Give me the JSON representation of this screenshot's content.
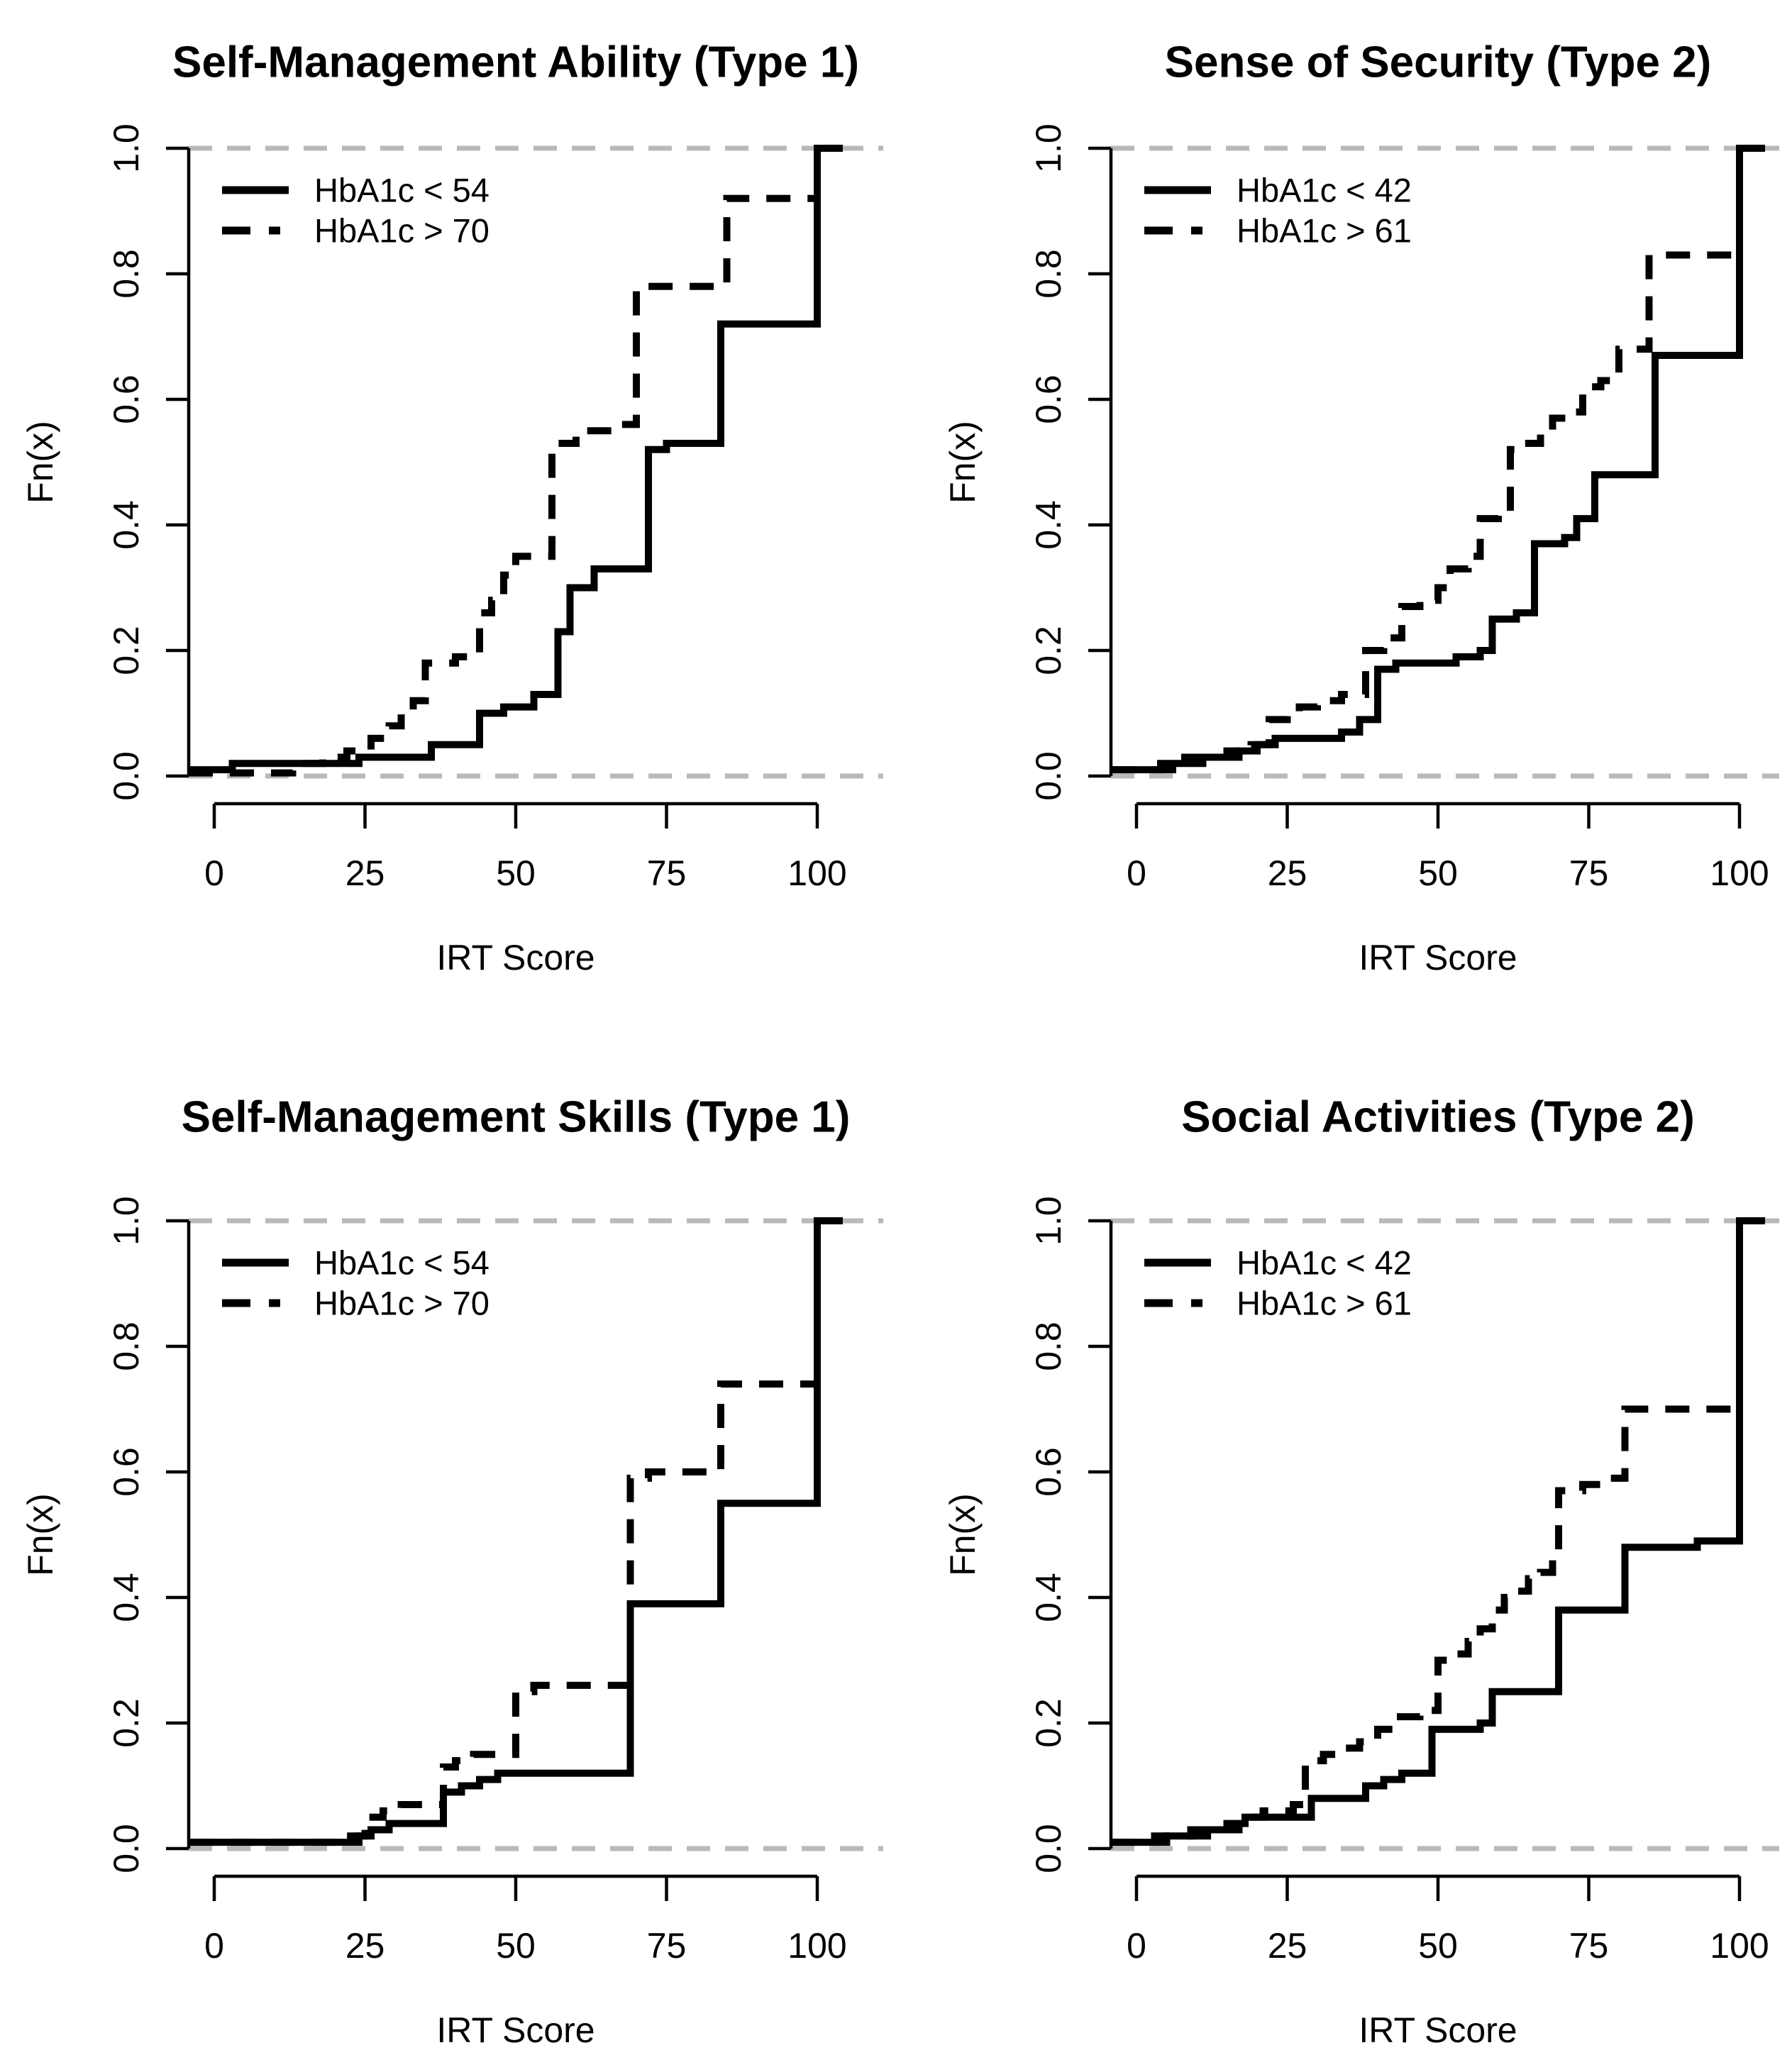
{
  "figure": {
    "rows": 2,
    "cols": 2,
    "panel_order": [
      "top-left",
      "top-right",
      "bottom-left",
      "bottom-right"
    ]
  },
  "colors": {
    "curve": "#000000",
    "axis": "#000000",
    "text": "#000000",
    "reference_line": "#b9b9b9",
    "background": "#ffffff"
  },
  "chart_data": [
    {
      "type": "line",
      "subtype": "ecdf-step",
      "title": "Self-Management Ability (Type 1)",
      "xlabel": "IRT Score",
      "ylabel": "Fn(x)",
      "xlim": [
        0,
        100
      ],
      "ylim": [
        0,
        1
      ],
      "xticks": [
        0,
        25,
        50,
        75,
        100
      ],
      "yticks": [
        0,
        0.2,
        0.4,
        0.6,
        0.8,
        1
      ],
      "ytick_labels": [
        "0.0",
        "0.2",
        "0.4",
        "0.6",
        "0.8",
        "1.0"
      ],
      "reference_lines_y": [
        0,
        1
      ],
      "grid": false,
      "legend_position": "top-left",
      "series": [
        {
          "name": "HbA1c < 54",
          "line_style": "solid",
          "steps": [
            [
              0,
              0.01
            ],
            [
              3,
              0.02
            ],
            [
              8,
              0.02
            ],
            [
              13,
              0.02
            ],
            [
              17,
              0.02
            ],
            [
              24,
              0.03
            ],
            [
              30,
              0.03
            ],
            [
              36,
              0.05
            ],
            [
              40,
              0.05
            ],
            [
              44,
              0.1
            ],
            [
              48,
              0.11
            ],
            [
              53,
              0.13
            ],
            [
              57,
              0.23
            ],
            [
              59,
              0.3
            ],
            [
              63,
              0.33
            ],
            [
              72,
              0.52
            ],
            [
              75,
              0.53
            ],
            [
              84,
              0.72
            ],
            [
              100,
              1.0
            ]
          ]
        },
        {
          "name": "HbA1c > 70",
          "line_style": "dashed",
          "steps": [
            [
              0,
              0.005
            ],
            [
              13,
              0.02
            ],
            [
              18,
              0.03
            ],
            [
              22,
              0.04
            ],
            [
              26,
              0.06
            ],
            [
              29,
              0.08
            ],
            [
              31,
              0.1
            ],
            [
              33,
              0.12
            ],
            [
              35,
              0.18
            ],
            [
              40,
              0.19
            ],
            [
              44,
              0.26
            ],
            [
              46,
              0.28
            ],
            [
              48,
              0.32
            ],
            [
              50,
              0.35
            ],
            [
              56,
              0.53
            ],
            [
              60,
              0.55
            ],
            [
              66,
              0.56
            ],
            [
              70,
              0.78
            ],
            [
              85,
              0.92
            ],
            [
              100,
              1.0
            ]
          ]
        }
      ]
    },
    {
      "type": "line",
      "subtype": "ecdf-step",
      "title": "Sense of Security (Type 2)",
      "xlabel": "IRT Score",
      "ylabel": "Fn(x)",
      "xlim": [
        0,
        100
      ],
      "ylim": [
        0,
        1
      ],
      "xticks": [
        0,
        25,
        50,
        75,
        100
      ],
      "yticks": [
        0,
        0.2,
        0.4,
        0.6,
        0.8,
        1
      ],
      "ytick_labels": [
        "0.0",
        "0.2",
        "0.4",
        "0.6",
        "0.8",
        "1.0"
      ],
      "reference_lines_y": [
        0,
        1
      ],
      "grid": false,
      "legend_position": "top-left",
      "series": [
        {
          "name": "HbA1c < 42",
          "line_style": "solid",
          "steps": [
            [
              0,
              0.01
            ],
            [
              4,
              0.02
            ],
            [
              8,
              0.03
            ],
            [
              13,
              0.03
            ],
            [
              17,
              0.04
            ],
            [
              20,
              0.05
            ],
            [
              23,
              0.06
            ],
            [
              31,
              0.06
            ],
            [
              34,
              0.07
            ],
            [
              37,
              0.09
            ],
            [
              40,
              0.17
            ],
            [
              43,
              0.18
            ],
            [
              53,
              0.19
            ],
            [
              57,
              0.2
            ],
            [
              59,
              0.25
            ],
            [
              63,
              0.26
            ],
            [
              66,
              0.37
            ],
            [
              71,
              0.38
            ],
            [
              73,
              0.41
            ],
            [
              76,
              0.48
            ],
            [
              86,
              0.67
            ],
            [
              100,
              1.0
            ]
          ]
        },
        {
          "name": "HbA1c > 61",
          "line_style": "dashed",
          "steps": [
            [
              0,
              0.01
            ],
            [
              7,
              0.02
            ],
            [
              11,
              0.03
            ],
            [
              15,
              0.04
            ],
            [
              19,
              0.05
            ],
            [
              22,
              0.09
            ],
            [
              25,
              0.1
            ],
            [
              27,
              0.11
            ],
            [
              30,
              0.12
            ],
            [
              34,
              0.13
            ],
            [
              38,
              0.2
            ],
            [
              41,
              0.22
            ],
            [
              44,
              0.27
            ],
            [
              47,
              0.28
            ],
            [
              50,
              0.3
            ],
            [
              52,
              0.33
            ],
            [
              55,
              0.35
            ],
            [
              57,
              0.41
            ],
            [
              60,
              0.42
            ],
            [
              62,
              0.52
            ],
            [
              64,
              0.53
            ],
            [
              67,
              0.55
            ],
            [
              69,
              0.57
            ],
            [
              72,
              0.58
            ],
            [
              74,
              0.62
            ],
            [
              77,
              0.63
            ],
            [
              80,
              0.68
            ],
            [
              85,
              0.83
            ],
            [
              100,
              1.0
            ]
          ]
        }
      ]
    },
    {
      "type": "line",
      "subtype": "ecdf-step",
      "title": "Self-Management Skills (Type 1)",
      "xlabel": "IRT Score",
      "ylabel": "Fn(x)",
      "xlim": [
        0,
        100
      ],
      "ylim": [
        0,
        1
      ],
      "xticks": [
        0,
        25,
        50,
        75,
        100
      ],
      "yticks": [
        0,
        0.2,
        0.4,
        0.6,
        0.8,
        1
      ],
      "ytick_labels": [
        "0.0",
        "0.2",
        "0.4",
        "0.6",
        "0.8",
        "1.0"
      ],
      "reference_lines_y": [
        0,
        1
      ],
      "grid": false,
      "legend_position": "top-left",
      "series": [
        {
          "name": "HbA1c < 54",
          "line_style": "solid",
          "steps": [
            [
              0,
              0.01
            ],
            [
              20,
              0.01
            ],
            [
              24,
              0.02
            ],
            [
              26,
              0.03
            ],
            [
              29,
              0.04
            ],
            [
              36,
              0.04
            ],
            [
              38,
              0.09
            ],
            [
              41,
              0.1
            ],
            [
              44,
              0.11
            ],
            [
              47,
              0.12
            ],
            [
              66,
              0.12
            ],
            [
              69,
              0.39
            ],
            [
              72,
              0.39
            ],
            [
              84,
              0.55
            ],
            [
              100,
              1.0
            ]
          ]
        },
        {
          "name": "HbA1c > 70",
          "line_style": "dashed",
          "steps": [
            [
              0,
              0.01
            ],
            [
              22,
              0.02
            ],
            [
              25,
              0.05
            ],
            [
              28,
              0.06
            ],
            [
              31,
              0.07
            ],
            [
              38,
              0.13
            ],
            [
              40,
              0.14
            ],
            [
              43,
              0.15
            ],
            [
              50,
              0.25
            ],
            [
              53,
              0.26
            ],
            [
              66,
              0.26
            ],
            [
              69,
              0.59
            ],
            [
              72,
              0.6
            ],
            [
              84,
              0.74
            ],
            [
              100,
              1.0
            ]
          ]
        }
      ]
    },
    {
      "type": "line",
      "subtype": "ecdf-step",
      "title": "Social Activities (Type 2)",
      "xlabel": "IRT Score",
      "ylabel": "Fn(x)",
      "xlim": [
        0,
        100
      ],
      "ylim": [
        0,
        1
      ],
      "xticks": [
        0,
        25,
        50,
        75,
        100
      ],
      "yticks": [
        0,
        0.2,
        0.4,
        0.6,
        0.8,
        1
      ],
      "ytick_labels": [
        "0.0",
        "0.2",
        "0.4",
        "0.6",
        "0.8",
        "1.0"
      ],
      "reference_lines_y": [
        0,
        1
      ],
      "grid": false,
      "legend_position": "top-left",
      "series": [
        {
          "name": "HbA1c < 42",
          "line_style": "solid",
          "steps": [
            [
              0,
              0.01
            ],
            [
              3,
              0.02
            ],
            [
              6,
              0.02
            ],
            [
              9,
              0.03
            ],
            [
              12,
              0.03
            ],
            [
              15,
              0.04
            ],
            [
              18,
              0.05
            ],
            [
              27,
              0.05
            ],
            [
              29,
              0.08
            ],
            [
              38,
              0.1
            ],
            [
              41,
              0.11
            ],
            [
              44,
              0.12
            ],
            [
              49,
              0.19
            ],
            [
              57,
              0.2
            ],
            [
              59,
              0.25
            ],
            [
              68,
              0.25
            ],
            [
              70,
              0.38
            ],
            [
              79,
              0.38
            ],
            [
              81,
              0.48
            ],
            [
              93,
              0.49
            ],
            [
              100,
              1.0
            ]
          ]
        },
        {
          "name": "HbA1c > 61",
          "line_style": "dashed",
          "steps": [
            [
              0,
              0.01
            ],
            [
              5,
              0.02
            ],
            [
              14,
              0.03
            ],
            [
              17,
              0.05
            ],
            [
              21,
              0.06
            ],
            [
              26,
              0.07
            ],
            [
              28,
              0.14
            ],
            [
              31,
              0.15
            ],
            [
              34,
              0.16
            ],
            [
              37,
              0.17
            ],
            [
              40,
              0.19
            ],
            [
              43,
              0.21
            ],
            [
              47,
              0.22
            ],
            [
              50,
              0.3
            ],
            [
              53,
              0.31
            ],
            [
              55,
              0.33
            ],
            [
              57,
              0.35
            ],
            [
              59,
              0.38
            ],
            [
              61,
              0.4
            ],
            [
              63,
              0.41
            ],
            [
              65,
              0.43
            ],
            [
              67,
              0.44
            ],
            [
              69,
              0.46
            ],
            [
              70,
              0.57
            ],
            [
              74,
              0.58
            ],
            [
              77,
              0.59
            ],
            [
              81,
              0.7
            ],
            [
              100,
              1.0
            ]
          ]
        }
      ]
    }
  ]
}
